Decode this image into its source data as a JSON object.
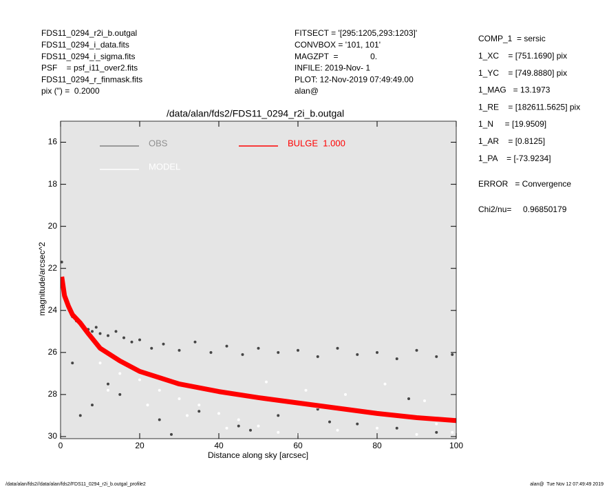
{
  "header": {
    "left": [
      "FDS11_0294_r2i_b.outgal",
      "FDS11_0294_i_data.fits",
      "FDS11_0294_i_sigma.fits",
      "PSF    = psf_i11_over2.fits",
      "FDS11_0294_r_finmask.fits",
      "pix (\") =  0.2000"
    ],
    "middle": [
      "FITSECT = '[295:1205,293:1203]'",
      "CONVBOX = '101, 101'",
      "MAGZPT  =              0.",
      "INFILE: 2019-Nov- 1",
      "PLOT: 12-Nov-2019 07:49:49.00",
      "alan@"
    ],
    "right": [
      "COMP_1  = sersic",
      "1_XC    = [751.1690] pix",
      "1_YC    = [749.8880] pix",
      "1_MAG   = 13.1973",
      "1_RE    = [182611.5625] pix",
      "1_N     = [19.9509]",
      "1_AR    = [0.8125]",
      "1_PA    = [-73.9234]",
      "ERROR   = Convergence",
      "Chi2/nu=     0.96850179"
    ]
  },
  "footer": {
    "left": "/data/alan/fds2//data/alan/fds2/FDS11_0294_r2i_b.outgal_profile2",
    "right": "alan@  Tue Nov 12 07:49:49 2019"
  },
  "chart_data": {
    "type": "scatter",
    "title": "/data/alan/fds2/FDS11_0294_r2i_b.outgal",
    "x_label": "Distance along sky [arcsec]",
    "y_label": "magnitude/arcsec^2",
    "xlim": [
      0,
      100
    ],
    "ylim": [
      30.1,
      15
    ],
    "xticks": [
      0,
      20,
      40,
      60,
      80,
      100
    ],
    "yticks": [
      16,
      18,
      20,
      22,
      24,
      26,
      28,
      30
    ],
    "background": "#e5e5e5",
    "series": [
      {
        "name": "OBS",
        "color": "#454545",
        "marker": "point",
        "x": [
          0.3,
          0.8,
          1.5,
          2.2,
          3,
          4,
          5,
          6,
          7,
          8,
          9,
          10,
          12,
          14,
          16,
          18,
          20,
          23,
          26,
          30,
          34,
          38,
          42,
          46,
          50,
          55,
          60,
          65,
          70,
          75,
          80,
          85,
          90,
          95,
          99,
          5,
          8,
          15,
          25,
          35,
          45,
          55,
          65,
          75,
          85,
          95,
          3,
          12,
          28,
          48,
          68,
          88
        ],
        "values": [
          21.7,
          22.8,
          23.5,
          24,
          24.3,
          24.5,
          24.6,
          24.8,
          24.9,
          25,
          24.8,
          25.1,
          25.2,
          25,
          25.3,
          25.5,
          25.4,
          25.8,
          25.6,
          25.9,
          25.5,
          26,
          25.7,
          26.1,
          25.8,
          26,
          25.9,
          26.2,
          25.8,
          26.1,
          26,
          26.3,
          25.9,
          26.2,
          26.1,
          29,
          28.5,
          28,
          29.2,
          28.8,
          29.5,
          29,
          28.7,
          29.4,
          29.6,
          29.8,
          26.5,
          27.5,
          29.9,
          29.7,
          29.3,
          28.2
        ]
      },
      {
        "name": "MODEL",
        "color": "#ffffff",
        "marker": "point",
        "x": [
          10,
          15,
          20,
          25,
          30,
          35,
          40,
          45,
          50,
          55,
          60,
          65,
          70,
          75,
          80,
          85,
          90,
          95,
          99,
          12,
          22,
          32,
          42,
          52,
          62,
          72,
          82,
          92
        ],
        "values": [
          26.5,
          27,
          27.3,
          27.8,
          28.2,
          28.5,
          28.9,
          29.2,
          29.5,
          29.8,
          29.9,
          28.6,
          29.7,
          28.8,
          29.6,
          29,
          29.9,
          29.4,
          29.8,
          27.8,
          28.5,
          29,
          29.6,
          27.4,
          27.8,
          28,
          27.5,
          28.3
        ]
      },
      {
        "name": "BULGE  1.000",
        "color": "#ff0000",
        "marker": "line",
        "x": [
          0.3,
          1,
          2,
          3,
          5,
          7,
          10,
          15,
          20,
          25,
          30,
          40,
          50,
          60,
          70,
          80,
          90,
          100
        ],
        "values": [
          22.4,
          23.3,
          23.8,
          24.2,
          24.6,
          25.1,
          25.8,
          26.4,
          26.9,
          27.2,
          27.5,
          27.86,
          28.15,
          28.4,
          28.65,
          28.9,
          29.1,
          29.24
        ]
      }
    ]
  }
}
